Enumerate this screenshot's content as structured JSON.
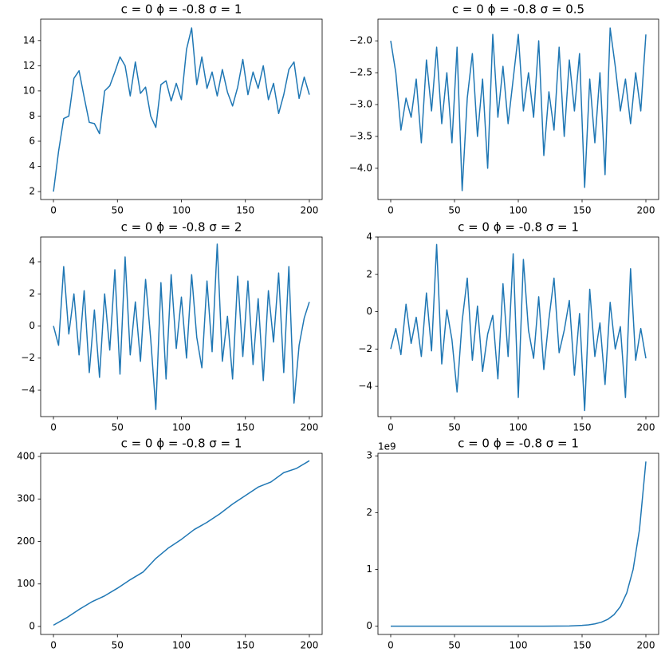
{
  "chart_data": [
    {
      "type": "line",
      "title": "c = 0 ϕ = -0.8 σ = 1",
      "color": "#1f77b4",
      "x": [
        0,
        4,
        8,
        12,
        16,
        20,
        24,
        28,
        32,
        36,
        40,
        44,
        48,
        52,
        56,
        60,
        64,
        68,
        72,
        76,
        80,
        84,
        88,
        92,
        96,
        100,
        104,
        108,
        112,
        116,
        120,
        124,
        128,
        132,
        136,
        140,
        144,
        148,
        152,
        156,
        160,
        164,
        168,
        172,
        176,
        180,
        184,
        188,
        192,
        196,
        200
      ],
      "values": [
        2.0,
        5.2,
        7.8,
        8.0,
        11.0,
        11.6,
        9.5,
        7.5,
        7.4,
        6.6,
        10.0,
        10.4,
        11.5,
        12.7,
        12.0,
        9.6,
        12.3,
        9.8,
        10.3,
        8.0,
        7.1,
        10.5,
        10.8,
        9.2,
        10.6,
        9.3,
        13.3,
        15.0,
        10.5,
        12.7,
        10.2,
        11.5,
        9.6,
        11.7,
        9.9,
        8.8,
        10.3,
        12.5,
        9.7,
        11.5,
        10.2,
        12.0,
        9.3,
        10.6,
        8.2,
        9.7,
        11.7,
        12.3,
        9.4,
        11.1,
        9.7
      ],
      "xlim": [
        -10,
        210
      ],
      "xticks": [
        0,
        50,
        100,
        150,
        200
      ],
      "ylim": [
        1.37,
        15.7
      ],
      "yticks": [
        2,
        4,
        6,
        8,
        10,
        12,
        14
      ]
    },
    {
      "type": "line",
      "title": "c = 0 ϕ = -0.8 σ = 0.5",
      "color": "#1f77b4",
      "x": [
        0,
        4,
        8,
        12,
        16,
        20,
        24,
        28,
        32,
        36,
        40,
        44,
        48,
        52,
        56,
        60,
        64,
        68,
        72,
        76,
        80,
        84,
        88,
        92,
        96,
        100,
        104,
        108,
        112,
        116,
        120,
        124,
        128,
        132,
        136,
        140,
        144,
        148,
        152,
        156,
        160,
        164,
        168,
        172,
        176,
        180,
        184,
        188,
        192,
        196,
        200
      ],
      "values": [
        -2.0,
        -2.5,
        -3.4,
        -2.9,
        -3.2,
        -2.6,
        -3.6,
        -2.3,
        -3.1,
        -2.1,
        -3.3,
        -2.5,
        -3.6,
        -2.1,
        -4.35,
        -2.9,
        -2.2,
        -3.5,
        -2.6,
        -4.0,
        -1.9,
        -3.2,
        -2.4,
        -3.3,
        -2.6,
        -1.9,
        -3.1,
        -2.5,
        -3.2,
        -2.0,
        -3.8,
        -2.8,
        -3.4,
        -2.1,
        -3.5,
        -2.3,
        -3.1,
        -2.2,
        -4.3,
        -2.6,
        -3.6,
        -2.5,
        -4.1,
        -1.8,
        -2.4,
        -3.1,
        -2.6,
        -3.3,
        -2.5,
        -3.1,
        -1.9
      ],
      "xlim": [
        -10,
        210
      ],
      "xticks": [
        0,
        50,
        100,
        150,
        200
      ],
      "ylim": [
        -4.49,
        -1.66
      ],
      "yticks": [
        {
          "value": -4,
          "label": "−4.0"
        },
        {
          "value": -3.5,
          "label": "−3.5"
        },
        {
          "value": -3,
          "label": "−3.0"
        },
        {
          "value": -2.5,
          "label": "−2.5"
        },
        {
          "value": -2,
          "label": "−2.0"
        }
      ]
    },
    {
      "type": "line",
      "title": "c = 0 ϕ = -0.8 σ = 2",
      "color": "#1f77b4",
      "x": [
        0,
        4,
        8,
        12,
        16,
        20,
        24,
        28,
        32,
        36,
        40,
        44,
        48,
        52,
        56,
        60,
        64,
        68,
        72,
        76,
        80,
        84,
        88,
        92,
        96,
        100,
        104,
        108,
        112,
        116,
        120,
        124,
        128,
        132,
        136,
        140,
        144,
        148,
        152,
        156,
        160,
        164,
        168,
        172,
        176,
        180,
        184,
        188,
        192,
        196,
        200
      ],
      "values": [
        0,
        -1.2,
        3.7,
        -0.5,
        2.0,
        -1.8,
        2.2,
        -2.9,
        1.0,
        -3.2,
        2.0,
        -1.5,
        3.5,
        -3.0,
        4.3,
        -1.8,
        1.5,
        -2.2,
        2.9,
        -0.8,
        -5.2,
        2.7,
        -3.3,
        3.2,
        -1.4,
        1.8,
        -2.0,
        3.2,
        -0.7,
        -2.6,
        2.8,
        -1.6,
        5.1,
        -2.2,
        0.6,
        -3.3,
        3.1,
        -1.9,
        2.8,
        -2.4,
        1.7,
        -3.4,
        2.2,
        -1.0,
        3.3,
        -2.9,
        3.7,
        -4.8,
        -1.2,
        0.5,
        1.5
      ],
      "xlim": [
        -10,
        210
      ],
      "xticks": [
        0,
        50,
        100,
        150,
        200
      ],
      "ylim": [
        -5.64,
        5.54
      ],
      "yticks": [
        {
          "value": -4,
          "label": "−4"
        },
        {
          "value": -2,
          "label": "−2"
        },
        0,
        2,
        4
      ]
    },
    {
      "type": "line",
      "title": "c = 0 ϕ = -0.8 σ = 1",
      "color": "#1f77b4",
      "x": [
        0,
        4,
        8,
        12,
        16,
        20,
        24,
        28,
        32,
        36,
        40,
        44,
        48,
        52,
        56,
        60,
        64,
        68,
        72,
        76,
        80,
        84,
        88,
        92,
        96,
        100,
        104,
        108,
        112,
        116,
        120,
        124,
        128,
        132,
        136,
        140,
        144,
        148,
        152,
        156,
        160,
        164,
        168,
        172,
        176,
        180,
        184,
        188,
        192,
        196,
        200
      ],
      "values": [
        -2.0,
        -0.9,
        -2.3,
        0.4,
        -1.7,
        -0.3,
        -2.4,
        1.0,
        -2.1,
        3.6,
        -2.8,
        0.1,
        -1.5,
        -4.3,
        -0.5,
        1.8,
        -2.6,
        0.3,
        -3.2,
        -1.2,
        -0.2,
        -3.6,
        1.5,
        -2.4,
        3.1,
        -4.6,
        2.8,
        -1.0,
        -2.5,
        0.8,
        -3.1,
        -0.4,
        1.8,
        -2.2,
        -1.0,
        0.6,
        -3.4,
        -0.1,
        -5.3,
        1.2,
        -2.4,
        -0.6,
        -3.9,
        0.5,
        -2.0,
        -0.8,
        -4.6,
        2.3,
        -2.6,
        -0.9,
        -2.5
      ],
      "xlim": [
        -10,
        210
      ],
      "xticks": [
        0,
        50,
        100,
        150,
        200
      ],
      "ylim": [
        -5.62,
        4.0
      ],
      "yticks": [
        {
          "value": -4,
          "label": "−4"
        },
        {
          "value": -2,
          "label": "−2"
        },
        0,
        2,
        4
      ]
    },
    {
      "type": "line",
      "title": "c = 0 ϕ = -0.8 σ = 1",
      "color": "#1f77b4",
      "x": [
        0,
        10,
        20,
        30,
        40,
        50,
        60,
        70,
        80,
        90,
        100,
        110,
        120,
        130,
        140,
        150,
        160,
        170,
        180,
        190,
        200
      ],
      "values": [
        3,
        20,
        40,
        58,
        72,
        90,
        110,
        128,
        160,
        185,
        205,
        228,
        245,
        265,
        288,
        308,
        328,
        340,
        362,
        372,
        390
      ],
      "xlim": [
        -10,
        210
      ],
      "xticks": [
        0,
        50,
        100,
        150,
        200
      ],
      "ylim": [
        -18.8,
        407.5
      ],
      "yticks": [
        0,
        100,
        200,
        300,
        400
      ]
    },
    {
      "type": "line",
      "title": "c = 0 ϕ = -0.8 σ = 1",
      "color": "#1f77b4",
      "offset_text": "1e9",
      "x": [
        0,
        50,
        100,
        120,
        130,
        140,
        150,
        155,
        160,
        165,
        170,
        175,
        180,
        185,
        190,
        195,
        200
      ],
      "values": [
        2,
        340,
        68900,
        580000,
        1680000,
        4900000,
        14100000,
        24100000,
        41000000,
        69800000,
        118900000,
        202500000,
        344800000,
        587200000,
        1000000000,
        1702900000,
        2900000000
      ],
      "xlim": [
        -10,
        210
      ],
      "xticks": [
        0,
        50,
        100,
        150,
        200
      ],
      "ylim": [
        -145000000,
        3045000000
      ],
      "yticks": [
        0,
        {
          "value": 1000000000,
          "label": "1"
        },
        {
          "value": 2000000000,
          "label": "2"
        },
        {
          "value": 3000000000,
          "label": "3"
        }
      ]
    }
  ]
}
